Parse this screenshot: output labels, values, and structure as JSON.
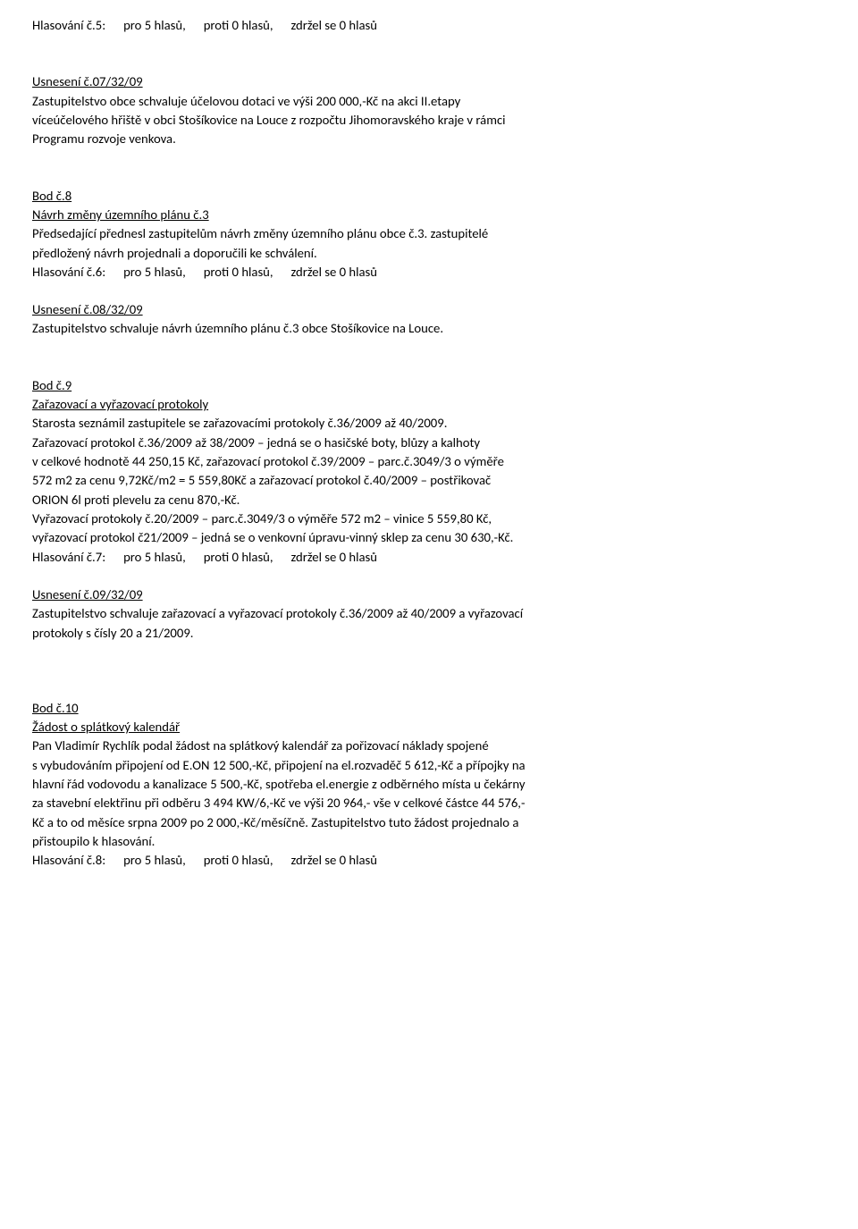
{
  "v5": {
    "label": "Hlasování č.5:",
    "pro": "pro 5 hlasů,",
    "proti": "proti 0 hlasů,",
    "zdr": "zdržel se 0 hlasů"
  },
  "u07": {
    "title": "Usnesení č.07/32/09",
    "l1": "Zastupitelstvo obce schvaluje účelovou dotaci ve výši 200 000,-Kč na akci II.etapy",
    "l2": "víceúčelového hřiště v obci Stošíkovice na Louce z rozpočtu Jihomoravského kraje v rámci",
    "l3": "Programu rozvoje venkova."
  },
  "b8": {
    "title": "Bod č.8",
    "sub": "Návrh změny územního plánu č.3",
    "l1": "Předsedající přednesl zastupitelům návrh změny územního plánu obce č.3. zastupitelé",
    "l2": "předložený návrh projednali a doporučili ke schválení."
  },
  "v6": {
    "label": "Hlasování č.6:",
    "pro": "pro 5 hlasů,",
    "proti": "proti 0 hlasů,",
    "zdr": "zdržel se 0 hlasů"
  },
  "u08": {
    "title": "Usnesení č.08/32/09",
    "l1": "Zastupitelstvo schvaluje návrh územního plánu č.3 obce Stošíkovice na Louce."
  },
  "b9": {
    "title": "Bod č.9",
    "sub": "Zařazovací a vyřazovací protokoly",
    "l1": "Starosta seznámil zastupitele se zařazovacími protokoly č.36/2009 až 40/2009.",
    "l2": "Zařazovací protokol č.36/2009 až 38/2009 – jedná se o hasičské boty, blůzy a kalhoty",
    "l3": "v celkové hodnotě 44 250,15 Kč, zařazovací protokol č.39/2009 – parc.č.3049/3 o výměře",
    "l4": "572 m2 za cenu 9,72Kč/m2 = 5 559,80Kč a zařazovací protokol č.40/2009 – postřikovač",
    "l5": "ORION 6l proti plevelu za cenu 870,-Kč.",
    "l6": "Vyřazovací protokoly č.20/2009 – parc.č.3049/3 o výměře 572 m2 – vinice 5 559,80 Kč,",
    "l7": "vyřazovací protokol č21/2009 – jedná se o venkovní úpravu-vinný sklep za cenu 30 630,-Kč."
  },
  "v7": {
    "label": "Hlasování č.7:",
    "pro": "pro 5 hlasů,",
    "proti": "proti 0 hlasů,",
    "zdr": "zdržel se 0 hlasů"
  },
  "u09": {
    "title": "Usnesení č.09/32/09",
    "l1": "Zastupitelstvo schvaluje zařazovací a vyřazovací protokoly č.36/2009 až 40/2009 a vyřazovací",
    "l2": "protokoly s čísly 20 a 21/2009."
  },
  "b10": {
    "title": "Bod č.10",
    "sub": "Žádost o splátkový kalendář",
    "l1": "Pan Vladimír Rychlík podal žádost na splátkový kalendář za pořizovací náklady spojené",
    "l2": "s vybudováním připojení od E.ON 12 500,-Kč, připojení na el.rozvaděč 5 612,-Kč a přípojky na",
    "l3": "hlavní řád vodovodu a kanalizace 5 500,-Kč, spotřeba el.energie z odběrného místa u čekárny",
    "l4": "za stavební elektřinu při odběru 3 494 KW/6,-Kč ve výši 20 964,- vše v celkové částce 44 576,-",
    "l5": "Kč a to od měsíce srpna 2009 po 2 000,-Kč/měsíčně. Zastupitelstvo tuto žádost projednalo a",
    "l6": "přistoupilo k hlasování."
  },
  "v8": {
    "label": "Hlasování č.8:",
    "pro": "pro 5 hlasů,",
    "proti": "proti 0 hlasů,",
    "zdr": "zdržel se 0 hlasů"
  }
}
